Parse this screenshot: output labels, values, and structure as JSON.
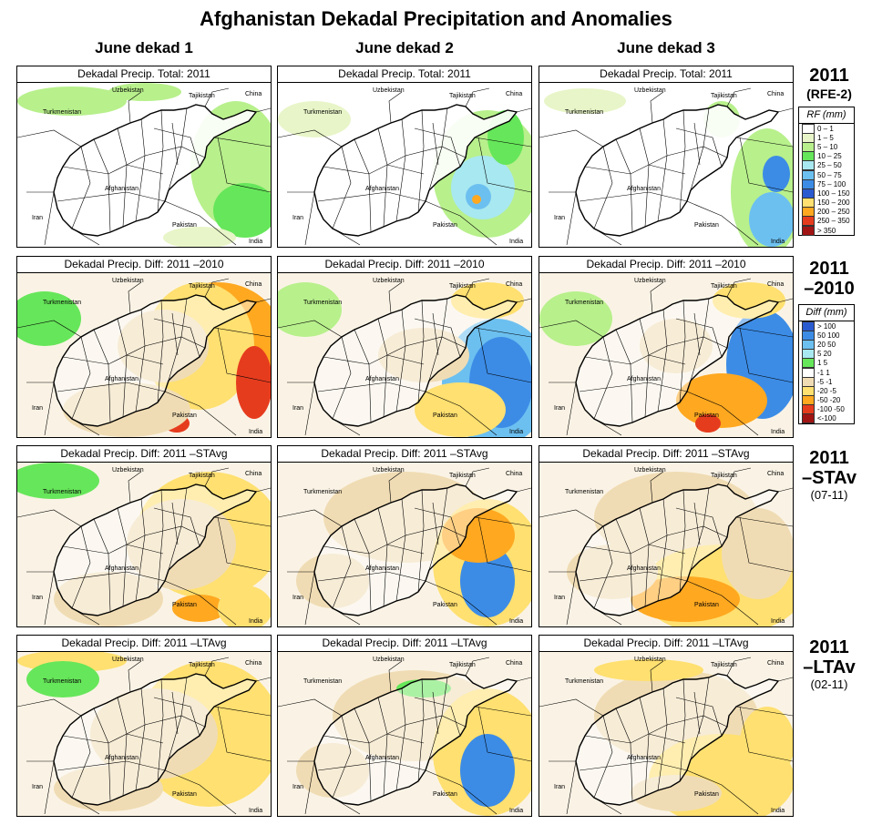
{
  "title": "Afghanistan Dekadal Precipitation and Anomalies",
  "columns": [
    "June dekad 1",
    "June dekad 2",
    "June dekad 3"
  ],
  "rows": [
    {
      "panel_title": "Dekadal Precip. Total: 2011",
      "label": {
        "l1": "2011",
        "l2": "",
        "l3": "",
        "sub": "(RFE-2)"
      },
      "legend": "rf"
    },
    {
      "panel_title": "Dekadal Precip. Diff: 2011 –2010",
      "label": {
        "l1": "2011",
        "l2": "–2010",
        "l3": "",
        "sub": ""
      },
      "legend": "diff"
    },
    {
      "panel_title": "Dekadal Precip. Diff:  2011 –STAvg",
      "label": {
        "l1": "2011",
        "l2": "–STAv",
        "l3": "(07-11)",
        "sub": ""
      },
      "legend": ""
    },
    {
      "panel_title": "Dekadal Precip. Diff:  2011 –LTAvg",
      "label": {
        "l1": "2011",
        "l2": "–LTAv",
        "l3": "(02-11)",
        "sub": ""
      },
      "legend": ""
    }
  ],
  "map_labels": {
    "uzbekistan": "Uzbekistan",
    "tajikistan": "Tajikistan",
    "china": "China",
    "turkmenistan": "Turkmenistan",
    "afghanistan": "Afghanistan",
    "iran": "Iran",
    "pakistan": "Pakistan",
    "india": "India"
  },
  "legend_rf": {
    "title": "RF (mm)",
    "items": [
      {
        "label": "0 – 1",
        "color": "#ffffff"
      },
      {
        "label": "1 – 5",
        "color": "#e8f5c8"
      },
      {
        "label": "5 – 10",
        "color": "#b8f08c"
      },
      {
        "label": "10 – 25",
        "color": "#66e65a"
      },
      {
        "label": "25 – 50",
        "color": "#a8e8f0"
      },
      {
        "label": "50 – 75",
        "color": "#6cc0f0"
      },
      {
        "label": "75 – 100",
        "color": "#3c8ce6"
      },
      {
        "label": "100 – 150",
        "color": "#2a5ad0"
      },
      {
        "label": "150 – 200",
        "color": "#ffe070"
      },
      {
        "label": "200 – 250",
        "color": "#ffa820"
      },
      {
        "label": "250 – 350",
        "color": "#e63c1e"
      },
      {
        "label": "> 350",
        "color": "#a01414"
      }
    ]
  },
  "legend_diff": {
    "title": "Diff (mm)",
    "items": [
      {
        "label": "> 100",
        "color": "#2a5ad0"
      },
      {
        "label": "50  100",
        "color": "#3c8ce6"
      },
      {
        "label": "20  50",
        "color": "#6cc0f0"
      },
      {
        "label": "5  20",
        "color": "#a8e8f0"
      },
      {
        "label": "1  5",
        "color": "#66e65a"
      },
      {
        "label": "-1  1",
        "color": "#ffffff"
      },
      {
        "label": "-5  -1",
        "color": "#f0dcb4"
      },
      {
        "label": "-20  -5",
        "color": "#ffe070"
      },
      {
        "label": "-50  -20",
        "color": "#ffa820"
      },
      {
        "label": "-100  -50",
        "color": "#e63c1e"
      },
      {
        "label": "<-100",
        "color": "#a01414"
      }
    ]
  },
  "colors": {
    "white": "#ffffff",
    "tan": "#f0dcb4",
    "lightgreen": "#b8f08c",
    "green": "#66e65a",
    "lightyellow": "#e8f5c8",
    "lightblue": "#a8e8f0",
    "midblue": "#6cc0f0",
    "blue": "#3c8ce6",
    "darkblue": "#2a5ad0",
    "yellow": "#ffe070",
    "orange": "#ffa820",
    "red": "#e63c1e"
  }
}
